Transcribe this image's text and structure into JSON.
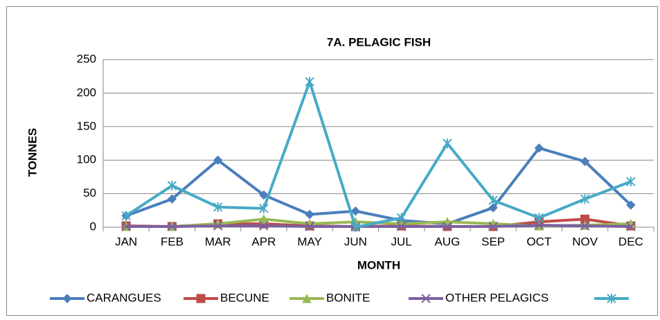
{
  "chart_data": {
    "type": "line",
    "title": "7A. PELAGIC FISH",
    "x_label": "MONTH",
    "y_label": "TONNES",
    "categories": [
      "JAN",
      "FEB",
      "MAR",
      "APR",
      "MAY",
      "JUN",
      "JUL",
      "AUG",
      "SEP",
      "OCT",
      "NOV",
      "DEC"
    ],
    "series": [
      {
        "name": "CARANGUES",
        "color": "#4a7ebb",
        "marker": "diamond",
        "values": [
          17,
          42,
          100,
          48,
          19,
          24,
          10,
          5,
          29,
          118,
          98,
          33
        ]
      },
      {
        "name": "BECUNE",
        "color": "#be4b48",
        "marker": "square",
        "values": [
          2,
          1,
          5,
          5,
          2,
          1,
          2,
          1,
          1,
          8,
          12,
          2
        ]
      },
      {
        "name": "BONITE",
        "color": "#98b954",
        "marker": "triangle",
        "values": [
          1,
          1,
          5,
          12,
          5,
          8,
          5,
          8,
          5,
          2,
          3,
          5
        ]
      },
      {
        "name": "OTHER PELAGICS",
        "color": "#7d60a0",
        "marker": "x",
        "values": [
          1,
          1,
          2,
          2,
          1,
          1,
          1,
          1,
          1,
          3,
          2,
          1
        ]
      },
      {
        "color": "#46aac5",
        "marker": "star",
        "values": [
          17,
          62,
          30,
          28,
          217,
          0,
          14,
          125,
          40,
          14,
          42,
          68
        ]
      }
    ],
    "ylim": [
      0,
      250
    ],
    "yticks": [
      0,
      50,
      100,
      150,
      200,
      250
    ],
    "grid": true,
    "legend": "bottom"
  }
}
